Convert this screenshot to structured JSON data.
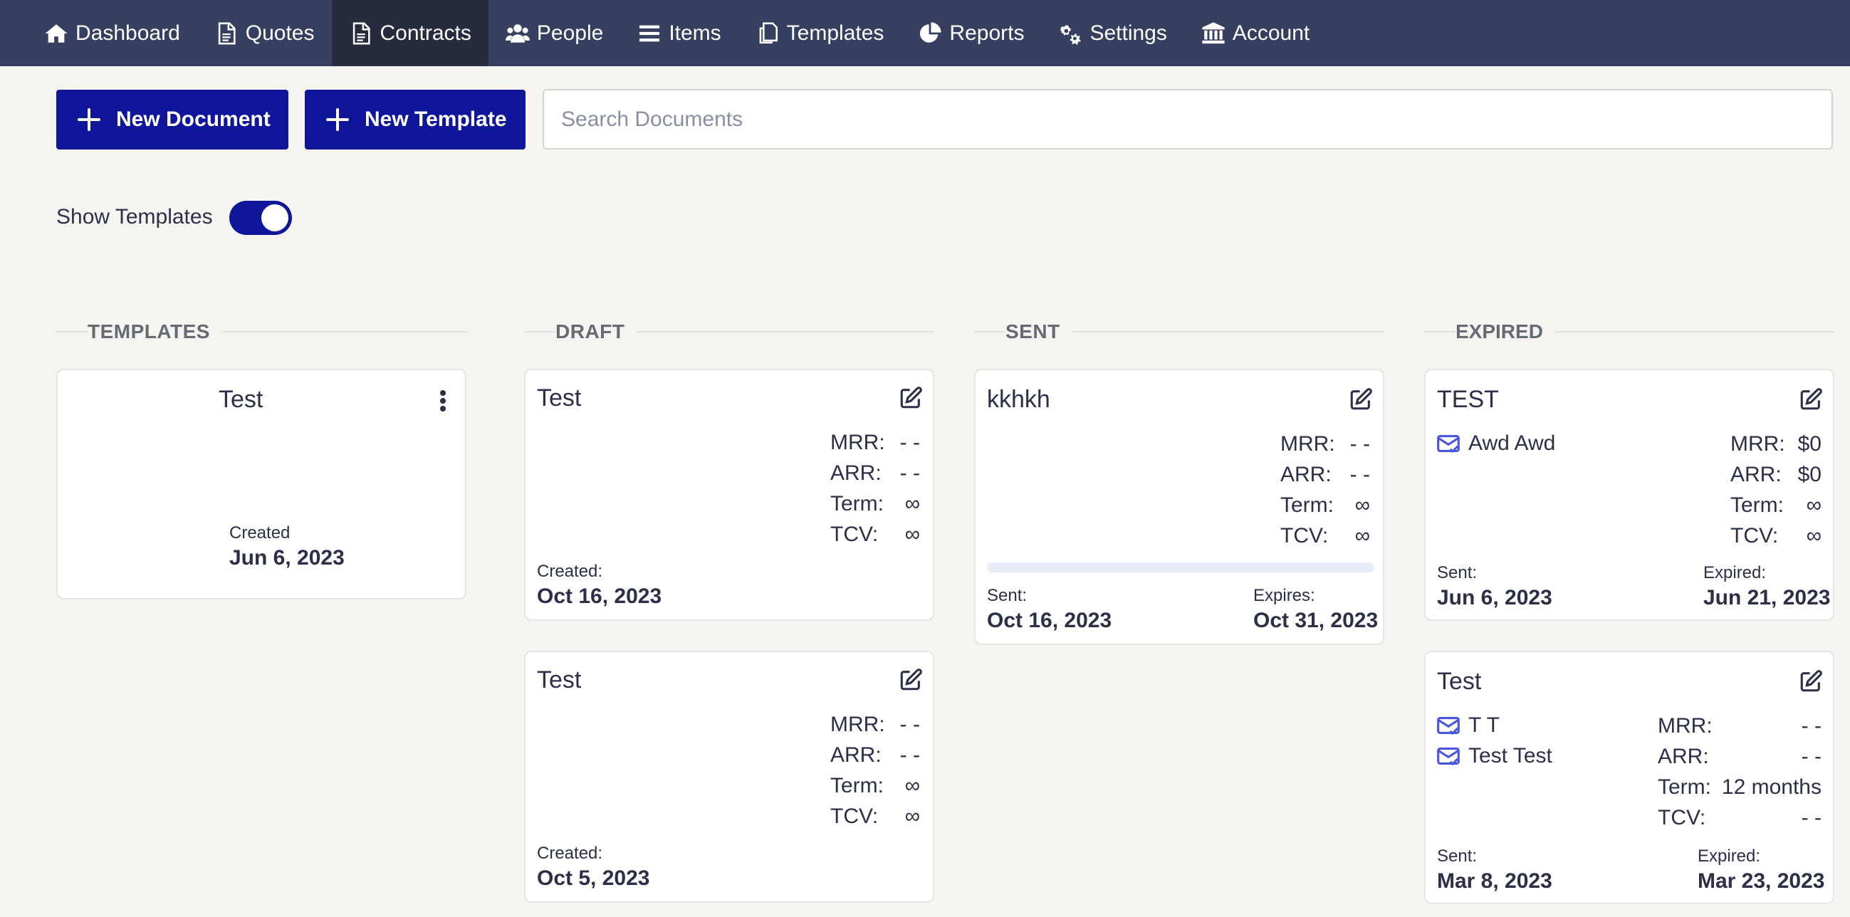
{
  "nav": {
    "items": [
      {
        "label": "Dashboard",
        "icon": "home-icon"
      },
      {
        "label": "Quotes",
        "icon": "document-icon"
      },
      {
        "label": "Contracts",
        "icon": "document-icon"
      },
      {
        "label": "People",
        "icon": "users-icon"
      },
      {
        "label": "Items",
        "icon": "list-icon"
      },
      {
        "label": "Templates",
        "icon": "copy-icon"
      },
      {
        "label": "Reports",
        "icon": "pie-chart-icon"
      },
      {
        "label": "Settings",
        "icon": "gears-icon"
      },
      {
        "label": "Account",
        "icon": "bank-icon"
      }
    ],
    "active": "Contracts"
  },
  "toolbar": {
    "new_document": "New Document",
    "new_template": "New Template",
    "search_placeholder": "Search Documents"
  },
  "toggle": {
    "label": "Show Templates",
    "on": true
  },
  "columns": {
    "templates": {
      "header": "TEMPLATES",
      "cards": [
        {
          "title": "Test",
          "created_label": "Created",
          "created": "Jun 6, 2023"
        }
      ]
    },
    "draft": {
      "header": "DRAFT",
      "cards": [
        {
          "title": "Test",
          "mrr_label": "MRR:",
          "mrr": "- -",
          "arr_label": "ARR:",
          "arr": "- -",
          "term_label": "Term:",
          "term": "∞",
          "tcv_label": "TCV:",
          "tcv": "∞",
          "created_label": "Created:",
          "created": "Oct 16, 2023"
        },
        {
          "title": "Test",
          "mrr_label": "MRR:",
          "mrr": "- -",
          "arr_label": "ARR:",
          "arr": "- -",
          "term_label": "Term:",
          "term": "∞",
          "tcv_label": "TCV:",
          "tcv": "∞",
          "created_label": "Created:",
          "created": "Oct 5, 2023"
        }
      ]
    },
    "sent": {
      "header": "SENT",
      "cards": [
        {
          "title": "kkhkh",
          "mrr_label": "MRR:",
          "mrr": "- -",
          "arr_label": "ARR:",
          "arr": "- -",
          "term_label": "Term:",
          "term": "∞",
          "tcv_label": "TCV:",
          "tcv": "∞",
          "progress": 0,
          "sent_label": "Sent:",
          "sent": "Oct 16, 2023",
          "expires_label": "Expires:",
          "expires": "Oct 31, 2023"
        }
      ]
    },
    "expired": {
      "header": "EXPIRED",
      "cards": [
        {
          "title": "TEST",
          "recipients": [
            "Awd Awd"
          ],
          "mrr_label": "MRR:",
          "mrr": "$0",
          "arr_label": "ARR:",
          "arr": "$0",
          "term_label": "Term:",
          "term": "∞",
          "tcv_label": "TCV:",
          "tcv": "∞",
          "sent_label": "Sent:",
          "sent": "Jun 6, 2023",
          "expired_label": "Expired:",
          "expired": "Jun 21, 2023"
        },
        {
          "title": "Test",
          "recipients": [
            "T T",
            "Test Test"
          ],
          "mrr_label": "MRR:",
          "mrr": "- -",
          "arr_label": "ARR:",
          "arr": "- -",
          "term_label": "Term:",
          "term": "12 months",
          "tcv_label": "TCV:",
          "tcv": "- -",
          "sent_label": "Sent:",
          "sent": "Mar 8, 2023",
          "expired_label": "Expired:",
          "expired": "Mar 23, 2023"
        }
      ]
    }
  },
  "colors": {
    "nav_bg": "#373f60",
    "nav_active": "#262b3d",
    "primary": "#0f1699",
    "page_bg": "#f5f4f1",
    "mail_icon": "#4a55e0"
  }
}
